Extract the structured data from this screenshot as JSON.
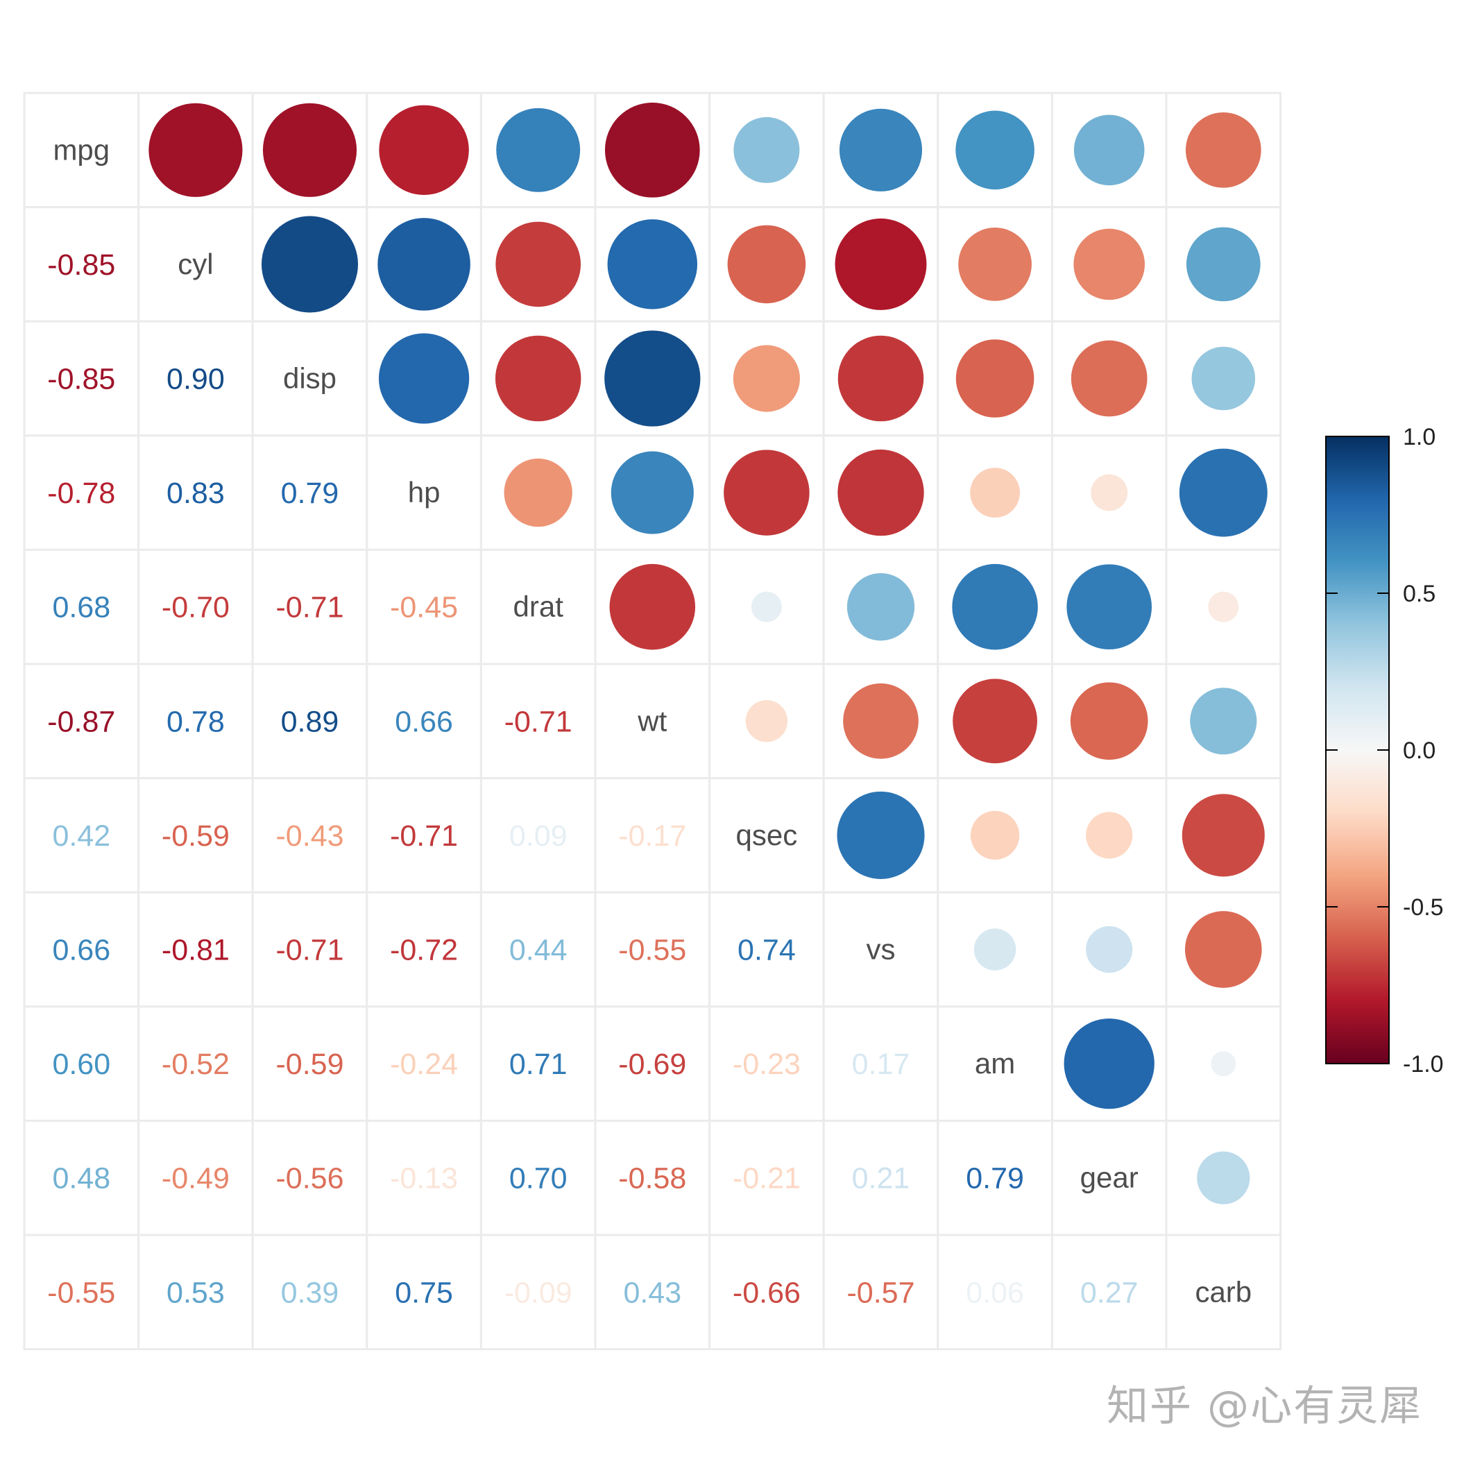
{
  "chart_data": {
    "type": "heatmap",
    "subtype": "correlation-matrix (upper: circles, lower: numbers)",
    "title": "",
    "variables": [
      "mpg",
      "cyl",
      "disp",
      "hp",
      "drat",
      "wt",
      "qsec",
      "vs",
      "am",
      "gear",
      "carb"
    ],
    "matrix": [
      [
        1.0,
        -0.85,
        -0.85,
        -0.78,
        0.68,
        -0.87,
        0.42,
        0.66,
        0.6,
        0.48,
        -0.55
      ],
      [
        -0.85,
        1.0,
        0.9,
        0.83,
        -0.7,
        0.78,
        -0.59,
        -0.81,
        -0.52,
        -0.49,
        0.53
      ],
      [
        -0.85,
        0.9,
        1.0,
        0.79,
        -0.71,
        0.89,
        -0.43,
        -0.71,
        -0.59,
        -0.56,
        0.39
      ],
      [
        -0.78,
        0.83,
        0.79,
        1.0,
        -0.45,
        0.66,
        -0.71,
        -0.72,
        -0.24,
        -0.13,
        0.75
      ],
      [
        0.68,
        -0.7,
        -0.71,
        -0.45,
        1.0,
        -0.71,
        0.09,
        0.44,
        0.71,
        0.7,
        -0.09
      ],
      [
        -0.87,
        0.78,
        0.89,
        0.66,
        -0.71,
        1.0,
        -0.17,
        -0.55,
        -0.69,
        -0.58,
        0.43
      ],
      [
        0.42,
        -0.59,
        -0.43,
        -0.71,
        0.09,
        -0.17,
        1.0,
        0.74,
        -0.23,
        -0.21,
        -0.66
      ],
      [
        0.66,
        -0.81,
        -0.71,
        -0.72,
        0.44,
        -0.55,
        0.74,
        1.0,
        0.17,
        0.21,
        -0.57
      ],
      [
        0.6,
        -0.52,
        -0.59,
        -0.24,
        0.71,
        -0.69,
        -0.23,
        0.17,
        1.0,
        0.79,
        0.06
      ],
      [
        0.48,
        -0.49,
        -0.56,
        -0.13,
        0.7,
        -0.58,
        -0.21,
        0.21,
        0.79,
        1.0,
        0.27
      ],
      [
        -0.55,
        0.53,
        0.39,
        0.75,
        -0.09,
        0.43,
        -0.66,
        -0.57,
        0.06,
        0.27,
        1.0
      ]
    ],
    "legend": {
      "type": "colorbar",
      "position": "right",
      "ticks": [
        "1.0",
        "0.5",
        "0.0",
        "-0.5",
        "-1.0"
      ],
      "range": [
        -1,
        1
      ]
    },
    "palette": [
      "#67001f",
      "#b2182b",
      "#d6604d",
      "#f4a582",
      "#fddbc7",
      "#f7f7f7",
      "#d1e5f0",
      "#92c5de",
      "#4393c3",
      "#2166ac",
      "#053061"
    ],
    "grid": true
  },
  "colors": {
    "label_text": "#4d4d4d",
    "grid_line": "#ebebeb",
    "watermark": "#b3b3b3"
  },
  "watermark": "知乎 @心有灵犀"
}
